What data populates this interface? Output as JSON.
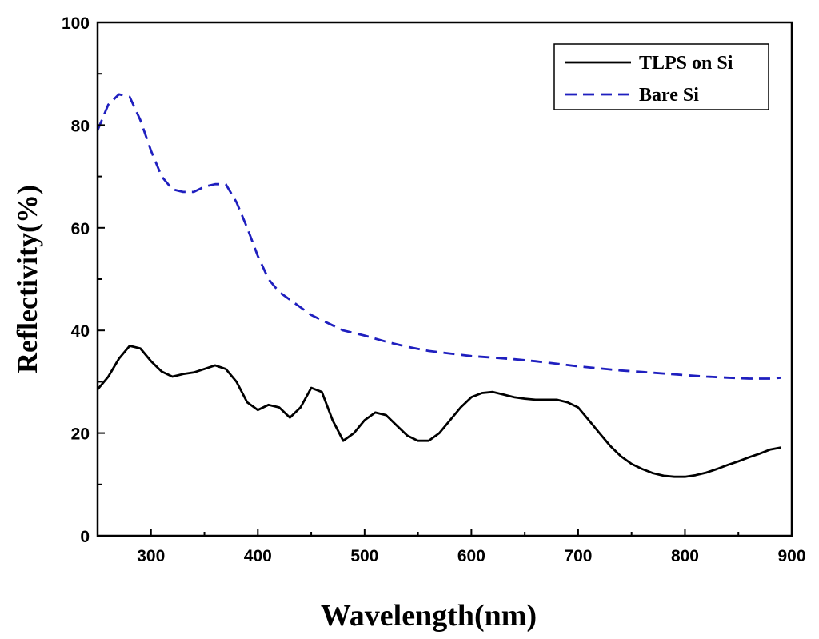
{
  "chart_data": {
    "type": "line",
    "title": "",
    "xlabel": "Wavelength(nm)",
    "ylabel": "Reflectivity(%)",
    "xlim": [
      250,
      900
    ],
    "ylim": [
      0,
      100
    ],
    "xticks": [
      300,
      400,
      500,
      600,
      700,
      800,
      900
    ],
    "yticks": [
      0,
      20,
      40,
      60,
      80,
      100
    ],
    "grid": false,
    "legend": "top-right",
    "series": [
      {
        "name": "TLPS on Si",
        "color": "#000000",
        "dash": "solid",
        "x": [
          250,
          260,
          270,
          280,
          290,
          300,
          310,
          320,
          330,
          340,
          350,
          360,
          370,
          380,
          390,
          400,
          410,
          420,
          430,
          440,
          450,
          460,
          470,
          480,
          490,
          500,
          510,
          520,
          530,
          540,
          550,
          560,
          570,
          580,
          590,
          600,
          610,
          620,
          630,
          640,
          650,
          660,
          670,
          680,
          690,
          700,
          710,
          720,
          730,
          740,
          750,
          760,
          770,
          780,
          790,
          800,
          810,
          820,
          830,
          840,
          850,
          860,
          870,
          880,
          890
        ],
        "y": [
          28.5,
          31,
          34.5,
          37,
          36.5,
          34,
          32,
          31,
          31.5,
          31.8,
          32.5,
          33.2,
          32.5,
          30,
          26,
          24.5,
          25.5,
          25,
          23,
          25,
          28.8,
          28,
          22.5,
          18.5,
          20,
          22.5,
          24,
          23.5,
          21.5,
          19.5,
          18.5,
          18.5,
          20,
          22.5,
          25,
          27,
          27.8,
          28,
          27.5,
          27,
          26.7,
          26.5,
          26.5,
          26.5,
          26,
          25,
          22.5,
          20,
          17.5,
          15.5,
          14,
          13,
          12.2,
          11.7,
          11.5,
          11.5,
          11.8,
          12.3,
          13,
          13.8,
          14.5,
          15.3,
          16,
          16.8,
          17.2
        ]
      },
      {
        "name": "Bare Si",
        "color": "#1f1fbf",
        "dash": "dashed",
        "x": [
          250,
          260,
          270,
          280,
          290,
          300,
          310,
          320,
          330,
          340,
          350,
          360,
          370,
          380,
          390,
          400,
          410,
          420,
          430,
          440,
          450,
          460,
          470,
          480,
          490,
          500,
          520,
          540,
          560,
          580,
          600,
          620,
          640,
          660,
          680,
          700,
          720,
          740,
          760,
          780,
          800,
          820,
          840,
          860,
          880,
          890
        ],
        "y": [
          79,
          84,
          86,
          85.5,
          81,
          75,
          70,
          67.5,
          67,
          67,
          68,
          68.5,
          68.5,
          65,
          60,
          54.5,
          50,
          47.5,
          46,
          44.5,
          43,
          42,
          41,
          40,
          39.5,
          39,
          37.8,
          36.8,
          36,
          35.5,
          35,
          34.7,
          34.4,
          34,
          33.5,
          33,
          32.6,
          32.2,
          31.9,
          31.6,
          31.3,
          31,
          30.8,
          30.6,
          30.6,
          30.8
        ]
      }
    ]
  }
}
